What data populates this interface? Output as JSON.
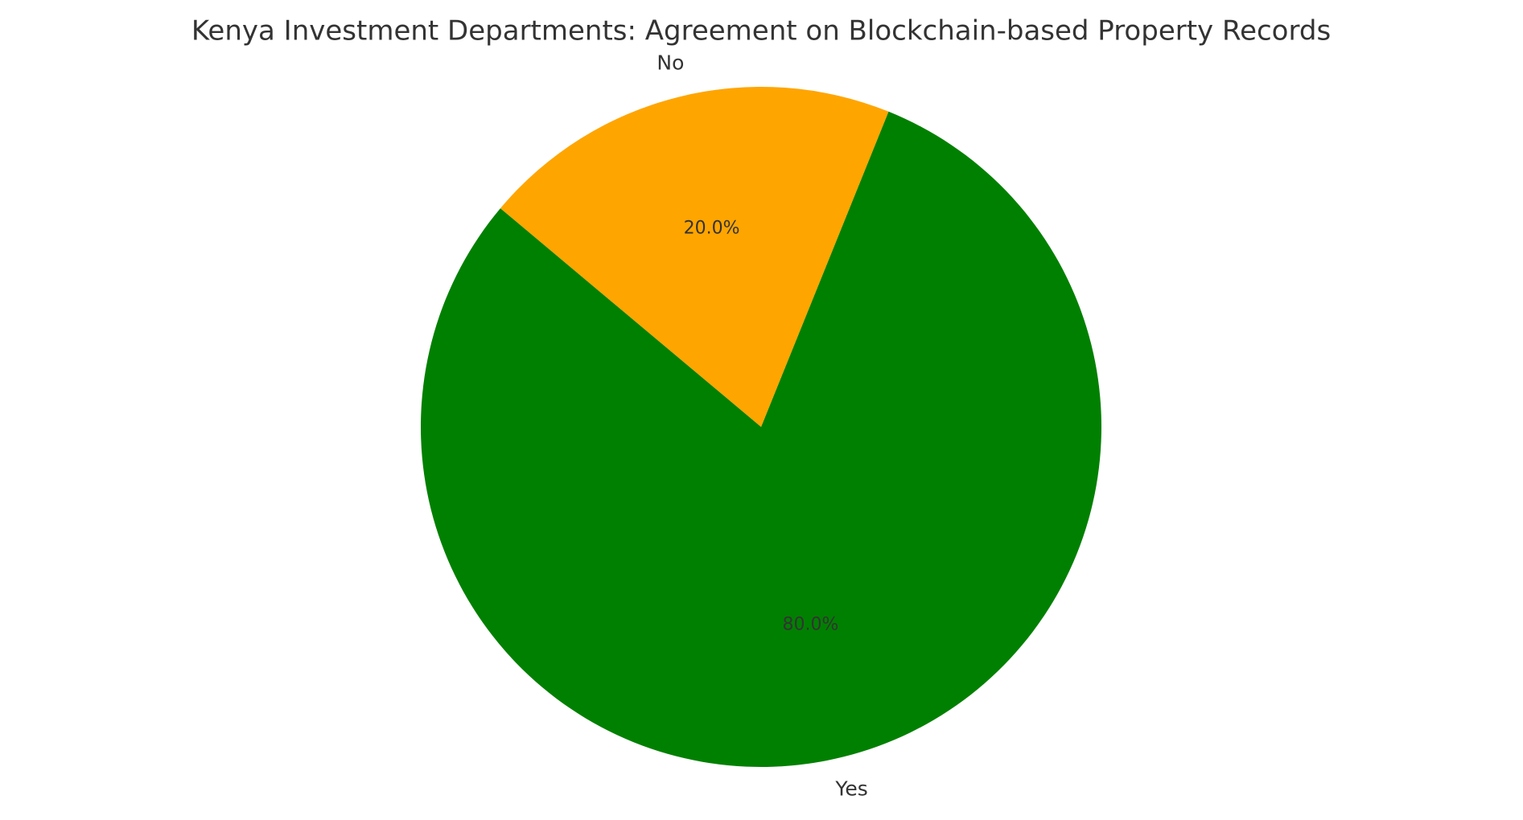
{
  "chart_data": {
    "type": "pie",
    "title": "Kenya Investment Departments: Agreement on Blockchain-based Property Records",
    "categories": [
      "Yes",
      "No"
    ],
    "values": [
      80,
      20
    ],
    "value_labels": [
      "80.0%",
      "20.0%"
    ],
    "colors": [
      "#008000",
      "#ffa500"
    ]
  }
}
